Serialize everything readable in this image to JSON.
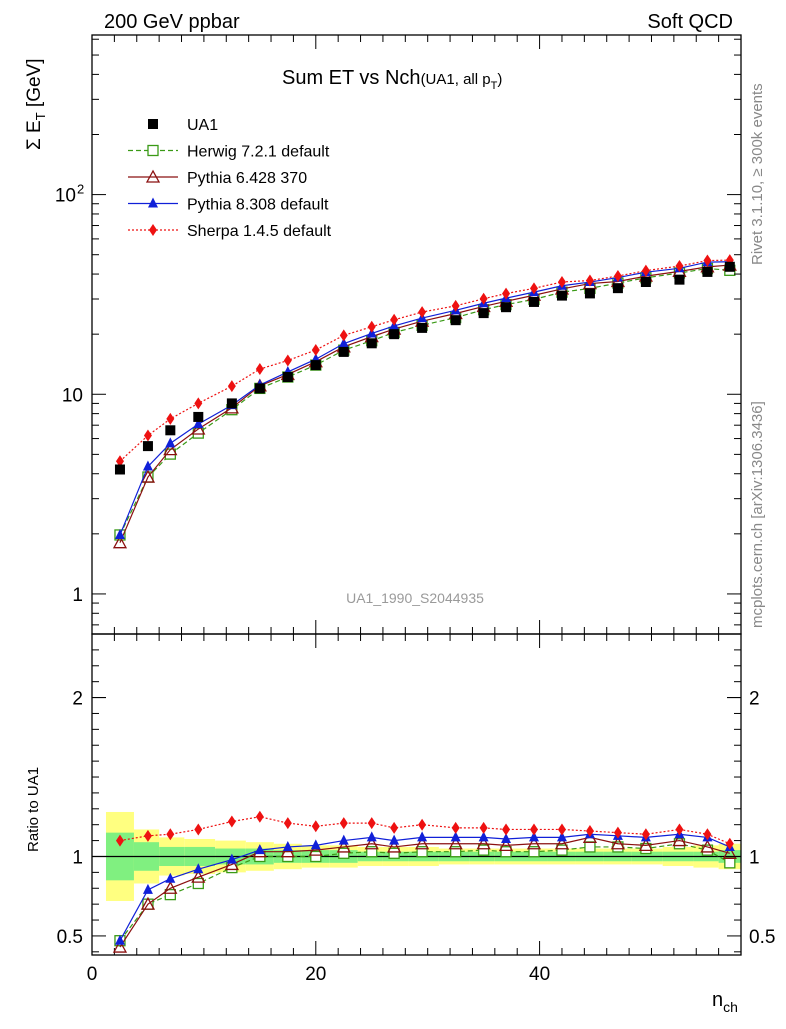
{
  "header": {
    "left": "200 GeV ppbar",
    "right": "Soft QCD"
  },
  "side_labels": {
    "top": "Rivet 3.1.10, ≥ 300k events",
    "bottom": "mcplots.cern.ch [arXiv:1306.3436]"
  },
  "chart_data": {
    "type": "line",
    "title_main": "Sum ET vs Nch",
    "title_sub": "(UA1, all p",
    "title_sub_index": "T",
    "title_close": ")",
    "watermark": "UA1_1990_S2044935",
    "ylabel_sigma": "Σ E",
    "ylabel_index": "T",
    "ylabel_unit": " [GeV]",
    "xlabel": "n",
    "xlabel_index": "ch",
    "ratio_ylabel": "Ratio to UA1",
    "xlim": [
      0,
      58
    ],
    "ylim": [
      0.63,
      630
    ],
    "yscale": "log",
    "ratio_ylim": [
      0.38,
      2.4
    ],
    "main_y_ticks": [
      {
        "value": 1,
        "label": "1"
      },
      {
        "value": 10,
        "label": "10"
      },
      {
        "value": 100,
        "label": "10",
        "sup": "2"
      }
    ],
    "ratio_y_ticks": [
      {
        "value": 0.5,
        "label": "0.5"
      },
      {
        "value": 1,
        "label": "1"
      },
      {
        "value": 2,
        "label": "2"
      }
    ],
    "x_ticks": [
      {
        "value": 0,
        "label": "0"
      },
      {
        "value": 20,
        "label": "20"
      },
      {
        "value": 40,
        "label": "40"
      }
    ],
    "x": [
      2.5,
      5,
      7,
      9.5,
      12.5,
      15,
      17.5,
      20,
      22.5,
      25,
      27,
      29.5,
      32.5,
      35,
      37,
      39.5,
      42,
      44.5,
      47,
      49.5,
      52.5,
      55,
      57
    ],
    "data": {
      "name": "UA1",
      "values": [
        4.2,
        5.5,
        6.6,
        7.7,
        9.0,
        10.7,
        12.2,
        14.0,
        16.3,
        18.0,
        20.0,
        21.5,
        23.5,
        25.5,
        27.3,
        29.0,
        31.2,
        32.0,
        34.0,
        36.5,
        37.5,
        41.0,
        43.5
      ]
    },
    "bands": {
      "inner_half_width": [
        0.15,
        0.09,
        0.06,
        0.06,
        0.05,
        0.05,
        0.04,
        0.04,
        0.04,
        0.03,
        0.03,
        0.03,
        0.03,
        0.03,
        0.03,
        0.03,
        0.03,
        0.03,
        0.03,
        0.03,
        0.03,
        0.03,
        0.04
      ],
      "outer_half_width": [
        0.28,
        0.17,
        0.12,
        0.11,
        0.1,
        0.09,
        0.08,
        0.07,
        0.07,
        0.06,
        0.06,
        0.06,
        0.05,
        0.05,
        0.05,
        0.05,
        0.05,
        0.05,
        0.05,
        0.05,
        0.06,
        0.07,
        0.08
      ]
    },
    "series": [
      {
        "name": "Herwig 7.2.1 default",
        "color": "#3a9a16",
        "dash": "5,3",
        "marker": "open-square",
        "ratio": [
          0.47,
          0.7,
          0.76,
          0.83,
          0.93,
          1.0,
          1.0,
          1.0,
          1.02,
          1.03,
          1.02,
          1.03,
          1.03,
          1.04,
          1.03,
          1.03,
          1.04,
          1.06,
          1.06,
          1.05,
          1.08,
          1.04,
          0.96
        ]
      },
      {
        "name": "Pythia 6.428 370",
        "color": "#8b1010",
        "dash": "",
        "marker": "open-triangle",
        "ratio": [
          0.43,
          0.7,
          0.8,
          0.87,
          0.95,
          1.03,
          1.03,
          1.04,
          1.06,
          1.08,
          1.06,
          1.08,
          1.08,
          1.08,
          1.07,
          1.08,
          1.08,
          1.12,
          1.08,
          1.07,
          1.1,
          1.06,
          1.02
        ]
      },
      {
        "name": "Pythia 8.308 default",
        "color": "#1020d8",
        "dash": "",
        "marker": "filled-triangle",
        "ratio": [
          0.47,
          0.79,
          0.86,
          0.92,
          0.98,
          1.04,
          1.06,
          1.07,
          1.1,
          1.12,
          1.1,
          1.12,
          1.12,
          1.12,
          1.11,
          1.12,
          1.12,
          1.14,
          1.13,
          1.12,
          1.14,
          1.12,
          1.06
        ]
      },
      {
        "name": "Sherpa 1.4.5 default",
        "color": "#ee1111",
        "dash": "2,2",
        "marker": "filled-diamond",
        "ratio": [
          1.1,
          1.13,
          1.14,
          1.17,
          1.22,
          1.25,
          1.21,
          1.19,
          1.21,
          1.21,
          1.18,
          1.2,
          1.18,
          1.18,
          1.17,
          1.17,
          1.17,
          1.16,
          1.15,
          1.14,
          1.17,
          1.14,
          1.08
        ]
      }
    ]
  }
}
